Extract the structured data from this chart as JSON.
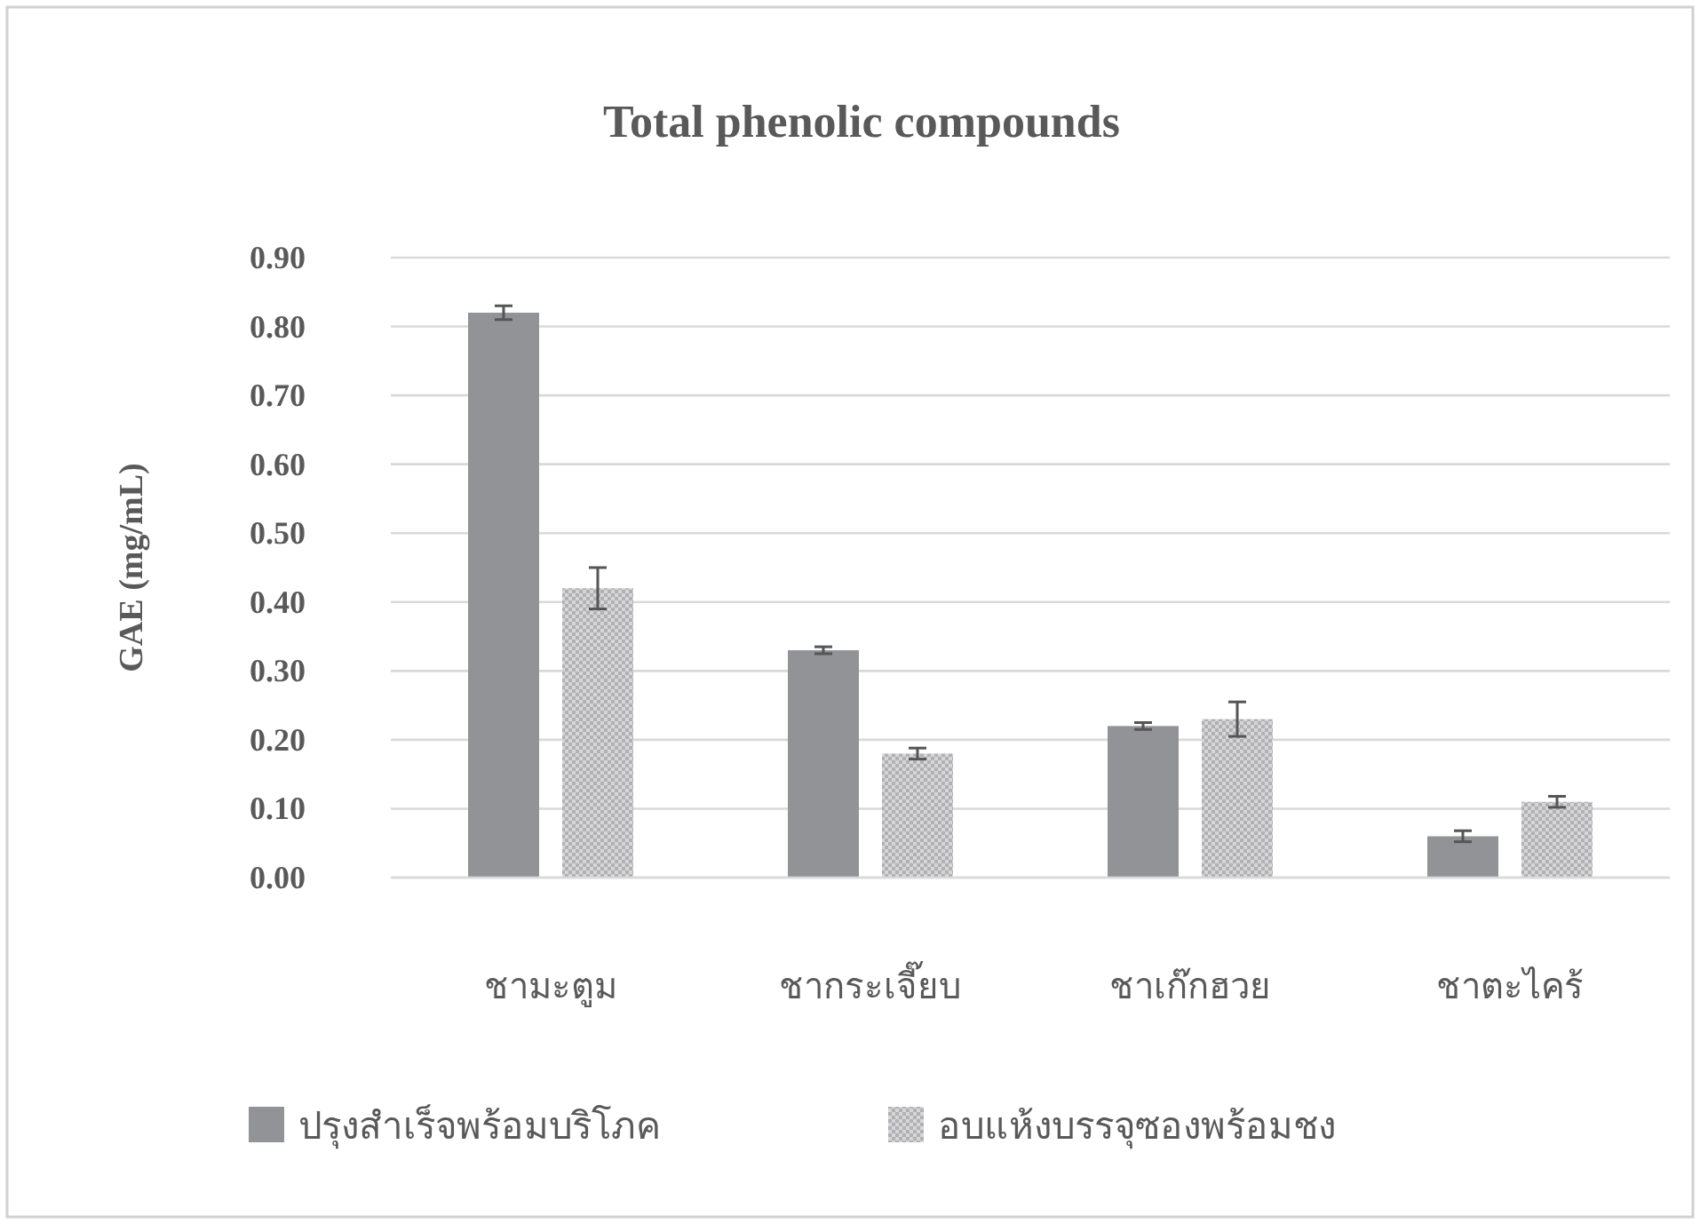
{
  "chart_data": {
    "type": "bar",
    "title": "Total phenolic compounds",
    "ylabel": "GAE (mg/mL)",
    "categories": [
      "ชามะตูม",
      "ชากระเจี๊ยบ",
      "ชาเก๊กฮวย",
      "ชาตะไคร้"
    ],
    "series": [
      {
        "name": "ปรุงสำเร็จพร้อมบริโภค",
        "color": "#929397",
        "values": [
          0.82,
          0.33,
          0.22,
          0.06
        ],
        "errors": [
          0.01,
          0.005,
          0.005,
          0.008
        ]
      },
      {
        "name": "อบแห้งบรรจุซองพร้อมชง",
        "color": "#b1b1b3",
        "values": [
          0.42,
          0.18,
          0.23,
          0.11
        ],
        "errors": [
          0.03,
          0.008,
          0.025,
          0.008
        ]
      }
    ],
    "ylim": [
      0,
      0.9
    ],
    "yticks": [
      {
        "value": 0,
        "label": "0.00"
      },
      {
        "value": 0.1,
        "label": "0.10"
      },
      {
        "value": 0.2,
        "label": "0.20"
      },
      {
        "value": 0.3,
        "label": "0.30"
      },
      {
        "value": 0.4,
        "label": "0.40"
      },
      {
        "value": 0.5,
        "label": "0.50"
      },
      {
        "value": 0.6,
        "label": "0.60"
      },
      {
        "value": 0.7,
        "label": "0.70"
      },
      {
        "value": 0.8,
        "label": "0.80"
      },
      {
        "value": 0.9,
        "label": "0.90"
      }
    ],
    "grid": "y",
    "legend": "bottom"
  }
}
